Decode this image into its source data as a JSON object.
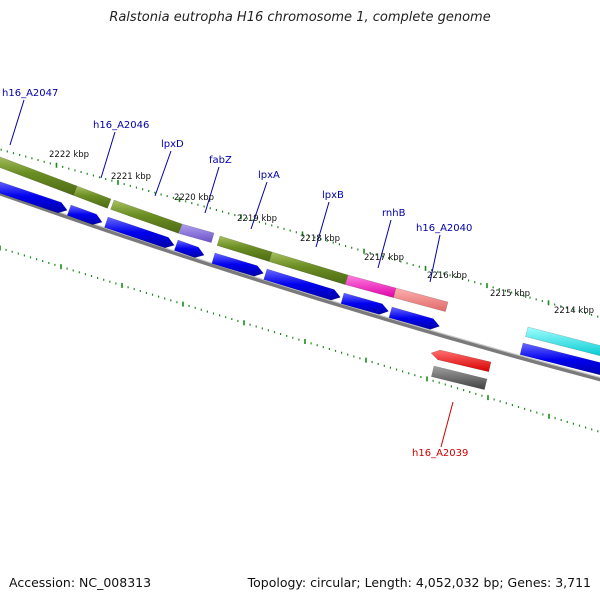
{
  "title": "Ralstonia eutropha H16 chromosome 1, complete genome",
  "footer": {
    "accession": "Accession: NC_008313",
    "summary": "Topology: circular; Length: 4,052,032 bp; Genes: 3,711"
  },
  "colors": {
    "background": "#ffffff",
    "backbone": "#808080",
    "tick": "#1a8a1a",
    "cds": "#0000ee",
    "gene": "#6b8e23",
    "label_forward": "#0000aa",
    "label_reverse": "#cc0000",
    "tick_label": "#111111"
  },
  "scale_ticks": [
    "2222 kbp",
    "2221 kbp",
    "2220 kbp",
    "2219 kbp",
    "2218 kbp",
    "2217 kbp",
    "2216 kbp",
    "2215 kbp",
    "2214 kbp"
  ],
  "gene_labels": [
    {
      "name": "h16_A2047",
      "strand": "forward"
    },
    {
      "name": "h16_A2046",
      "strand": "forward"
    },
    {
      "name": "lpxD",
      "strand": "forward"
    },
    {
      "name": "fabZ",
      "strand": "forward"
    },
    {
      "name": "lpxA",
      "strand": "forward"
    },
    {
      "name": "lpxB",
      "strand": "forward"
    },
    {
      "name": "rnhB",
      "strand": "forward"
    },
    {
      "name": "h16_A2040",
      "strand": "forward"
    },
    {
      "name": "h16_A2039",
      "strand": "reverse"
    }
  ]
}
